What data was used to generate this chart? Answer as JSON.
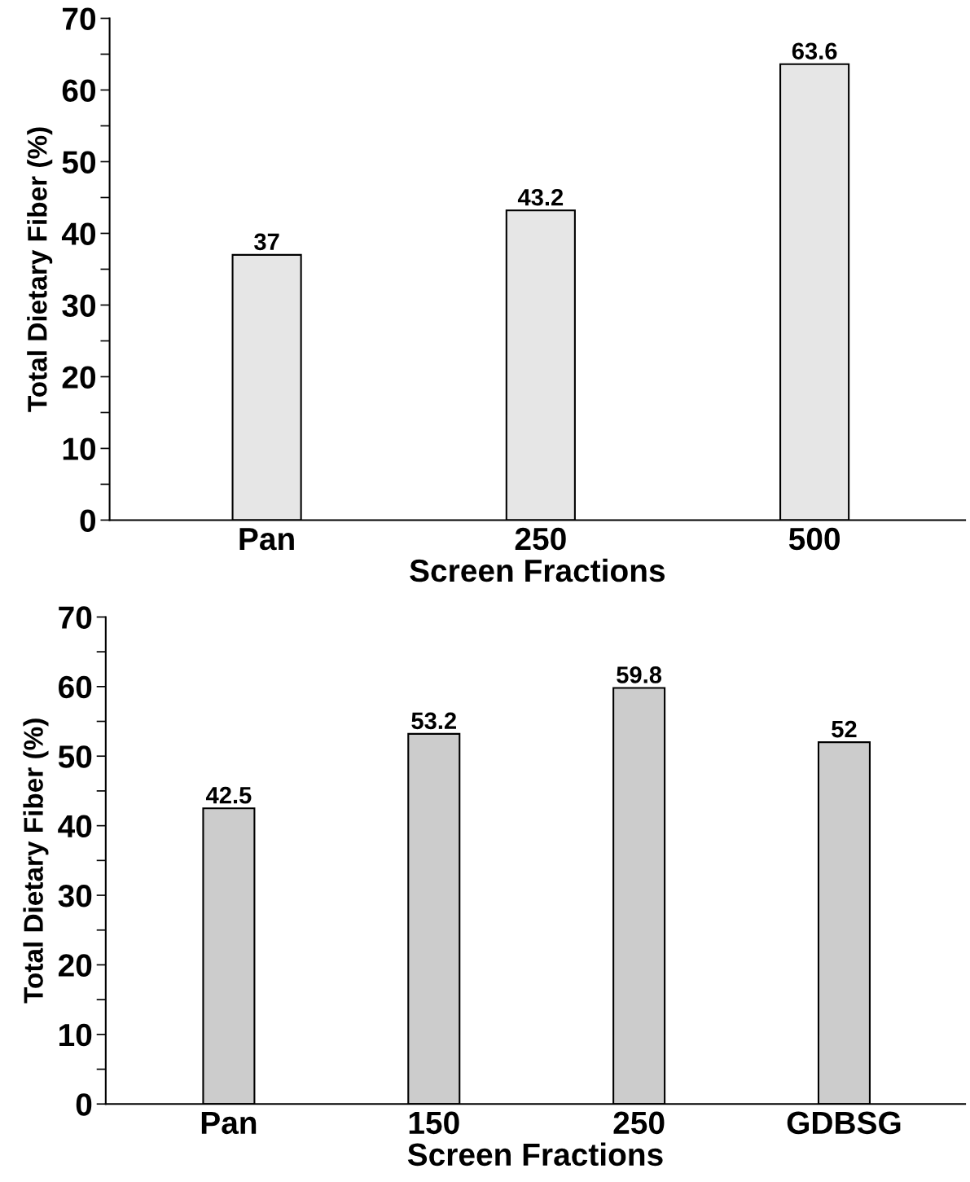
{
  "chart_data": [
    {
      "type": "bar",
      "xlabel": "Screen Fractions",
      "ylabel": "Total Dietary Fiber (%)",
      "categories": [
        "Pan",
        "250",
        "500"
      ],
      "values": [
        37,
        43.2,
        63.6
      ],
      "color": "#e6e6e6",
      "ylim": [
        0,
        70
      ],
      "yticks": [
        0,
        {
          "value": 5,
          "label": null
        },
        10,
        {
          "value": 15,
          "label": null
        },
        20,
        {
          "value": 25,
          "label": null
        },
        30,
        {
          "value": 35,
          "label": null
        },
        40,
        {
          "value": 45,
          "label": null
        },
        50,
        {
          "value": 55,
          "label": null
        },
        60,
        {
          "value": 65,
          "label": null
        },
        70
      ],
      "value_labels": [
        "37",
        "43.2",
        "63.6"
      ],
      "grid": false
    },
    {
      "type": "bar",
      "xlabel": "Screen Fractions",
      "ylabel": "Total Dietary Fiber (%)",
      "categories": [
        "Pan",
        "150",
        "250",
        "GDBSG"
      ],
      "values": [
        42.5,
        53.2,
        59.8,
        52
      ],
      "color": "#cccccc",
      "ylim": [
        0,
        70
      ],
      "yticks": [
        0,
        {
          "value": 5,
          "label": null
        },
        10,
        {
          "value": 15,
          "label": null
        },
        20,
        {
          "value": 25,
          "label": null
        },
        30,
        {
          "value": 35,
          "label": null
        },
        40,
        {
          "value": 45,
          "label": null
        },
        50,
        {
          "value": 55,
          "label": null
        },
        60,
        {
          "value": 65,
          "label": null
        },
        70
      ],
      "value_labels": [
        "42.5",
        "53.2",
        "59.8",
        "52"
      ],
      "grid": false
    }
  ]
}
